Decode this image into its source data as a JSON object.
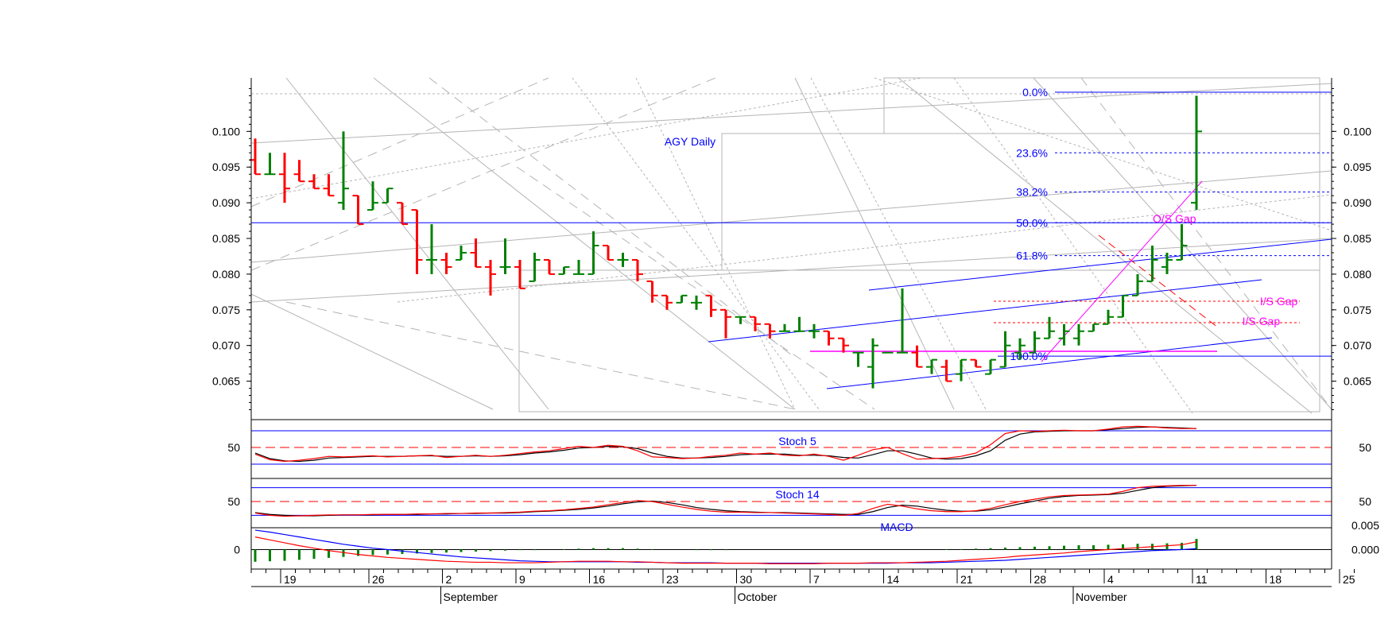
{
  "chart_data": {
    "type": "ohlc",
    "title": "AGY Daily",
    "colors": {
      "up": "#008000",
      "down": "#ff0000",
      "annotation": "#0000ff",
      "gap": "#ff00ff",
      "grid": "#b4b4b4"
    },
    "price_axis": {
      "ylim": [
        0.0605,
        0.1075
      ],
      "ticks": [
        "0.065",
        "0.070",
        "0.075",
        "0.080",
        "0.085",
        "0.090",
        "0.095",
        "0.100"
      ]
    },
    "x_axis": {
      "day_ticks": [
        {
          "day": 9,
          "label": "19"
        },
        {
          "day": 15,
          "label": "26"
        },
        {
          "day": 20,
          "label": "2"
        },
        {
          "day": 25,
          "label": "9"
        },
        {
          "day": 30,
          "label": "16"
        },
        {
          "day": 35,
          "label": "23"
        },
        {
          "day": 40,
          "label": "30"
        },
        {
          "day": 45,
          "label": "7"
        },
        {
          "day": 50,
          "label": "14"
        },
        {
          "day": 55,
          "label": "21"
        },
        {
          "day": 60,
          "label": "28"
        },
        {
          "day": 65,
          "label": "4"
        },
        {
          "day": 71,
          "label": "11"
        },
        {
          "day": 76,
          "label": "18"
        },
        {
          "day": 81,
          "label": "25"
        }
      ],
      "month_labels": [
        {
          "day": 20,
          "label": "September"
        },
        {
          "day": 40,
          "label": "October"
        },
        {
          "day": 63,
          "label": "November"
        }
      ]
    },
    "ohlc": [
      [
        0.096,
        0.099,
        0.094,
        0.094
      ],
      [
        0.094,
        0.097,
        0.094,
        0.094
      ],
      [
        0.094,
        0.097,
        0.09,
        0.092
      ],
      [
        0.094,
        0.096,
        0.093,
        0.093
      ],
      [
        0.093,
        0.094,
        0.092,
        0.092
      ],
      [
        0.092,
        0.094,
        0.091,
        0.091
      ],
      [
        0.09,
        0.1,
        0.089,
        0.092
      ],
      [
        0.091,
        0.091,
        0.087,
        0.087
      ],
      [
        0.089,
        0.093,
        0.089,
        0.09
      ],
      [
        0.09,
        0.092,
        0.09,
        0.092
      ],
      [
        0.09,
        0.09,
        0.087,
        0.087
      ],
      [
        0.089,
        0.089,
        0.08,
        0.082
      ],
      [
        0.082,
        0.087,
        0.08,
        0.082
      ],
      [
        0.082,
        0.083,
        0.08,
        0.081
      ],
      [
        0.082,
        0.084,
        0.082,
        0.083
      ],
      [
        0.083,
        0.085,
        0.081,
        0.081
      ],
      [
        0.081,
        0.082,
        0.077,
        0.08
      ],
      [
        0.081,
        0.085,
        0.08,
        0.081
      ],
      [
        0.081,
        0.082,
        0.078,
        0.078
      ],
      [
        0.079,
        0.083,
        0.079,
        0.082
      ],
      [
        0.082,
        0.082,
        0.08,
        0.08
      ],
      [
        0.08,
        0.081,
        0.08,
        0.081
      ],
      [
        0.08,
        0.082,
        0.08,
        0.08
      ],
      [
        0.08,
        0.086,
        0.08,
        0.084
      ],
      [
        0.084,
        0.084,
        0.082,
        0.082
      ],
      [
        0.082,
        0.083,
        0.081,
        0.082
      ],
      [
        0.082,
        0.082,
        0.079,
        0.08
      ],
      [
        0.079,
        0.079,
        0.076,
        0.077
      ],
      [
        0.077,
        0.077,
        0.075,
        0.076
      ],
      [
        0.076,
        0.077,
        0.076,
        0.077
      ],
      [
        0.076,
        0.077,
        0.075,
        0.076
      ],
      [
        0.077,
        0.077,
        0.074,
        0.075
      ],
      [
        0.075,
        0.075,
        0.071,
        0.074
      ],
      [
        0.074,
        0.074,
        0.073,
        0.074
      ],
      [
        0.074,
        0.074,
        0.072,
        0.073
      ],
      [
        0.073,
        0.073,
        0.071,
        0.072
      ],
      [
        0.072,
        0.073,
        0.072,
        0.072
      ],
      [
        0.072,
        0.074,
        0.072,
        0.072
      ],
      [
        0.072,
        0.073,
        0.071,
        0.072
      ],
      [
        0.072,
        0.072,
        0.07,
        0.071
      ],
      [
        0.071,
        0.071,
        0.069,
        0.07
      ],
      [
        0.069,
        0.069,
        0.067,
        0.069
      ],
      [
        0.067,
        0.071,
        0.064,
        0.07
      ],
      [
        0.069,
        0.069,
        0.069,
        0.069
      ],
      [
        0.069,
        0.078,
        0.069,
        0.069
      ],
      [
        0.069,
        0.07,
        0.067,
        0.067
      ],
      [
        0.067,
        0.068,
        0.066,
        0.068
      ],
      [
        0.067,
        0.068,
        0.065,
        0.065
      ],
      [
        0.066,
        0.068,
        0.065,
        0.068
      ],
      [
        0.068,
        0.068,
        0.067,
        0.067
      ],
      [
        0.066,
        0.068,
        0.066,
        0.068
      ],
      [
        0.067,
        0.072,
        0.067,
        0.07
      ],
      [
        0.069,
        0.071,
        0.068,
        0.07
      ],
      [
        0.069,
        0.072,
        0.069,
        0.071
      ],
      [
        0.071,
        0.074,
        0.071,
        0.072
      ],
      [
        0.071,
        0.073,
        0.07,
        0.072
      ],
      [
        0.071,
        0.073,
        0.07,
        0.072
      ],
      [
        0.072,
        0.073,
        0.072,
        0.073
      ],
      [
        0.073,
        0.075,
        0.073,
        0.074
      ],
      [
        0.074,
        0.077,
        0.074,
        0.077
      ],
      [
        0.077,
        0.08,
        0.077,
        0.079
      ],
      [
        0.079,
        0.084,
        0.079,
        0.082
      ],
      [
        0.081,
        0.083,
        0.08,
        0.082
      ],
      [
        0.082,
        0.087,
        0.082,
        0.084
      ],
      [
        0.09,
        0.105,
        0.089,
        0.1
      ]
    ],
    "ohlc_start_day": 7,
    "fibonacci": [
      {
        "label": "0.0%",
        "price": 0.1055
      },
      {
        "label": "23.6%",
        "price": 0.097
      },
      {
        "label": "38.2%",
        "price": 0.0915
      },
      {
        "label": "50.0%",
        "price": 0.0872
      },
      {
        "label": "61.8%",
        "price": 0.0826
      },
      {
        "label": "100.0%",
        "price": 0.0685
      }
    ],
    "gap_labels": [
      {
        "label": "O/S Gap",
        "price": 0.0878,
        "day": 69.5
      },
      {
        "label": "I/S Gap",
        "price": 0.0762,
        "day": 76.6
      },
      {
        "label": "I/S Gap",
        "price": 0.0734,
        "day": 75.4
      }
    ],
    "gap_lines": [
      0.0762,
      0.0732
    ],
    "support_line": 0.0872,
    "indicators": [
      {
        "name": "Stoch 5",
        "ticks": [
          "50"
        ],
        "levels": [
          20,
          50,
          80
        ],
        "k": [
          38,
          28,
          25,
          27,
          30,
          34,
          33,
          34,
          35,
          33,
          34,
          35,
          36,
          32,
          34,
          36,
          34,
          36,
          39,
          42,
          44,
          48,
          52,
          50,
          54,
          52,
          44,
          33,
          32,
          30,
          31,
          34,
          36,
          40,
          38,
          40,
          36,
          35,
          38,
          34,
          27,
          36,
          46,
          50,
          39,
          29,
          30,
          31,
          34,
          40,
          55,
          75,
          80,
          79,
          80,
          81,
          80,
          80,
          83,
          87,
          88,
          87,
          85,
          84,
          84
        ],
        "d": [
          40,
          30,
          26,
          25,
          27,
          31,
          32,
          33,
          34,
          34,
          34,
          35,
          35,
          34,
          34,
          35,
          34,
          35,
          37,
          40,
          42,
          45,
          49,
          50,
          52,
          51,
          48,
          40,
          34,
          31,
          31,
          32,
          34,
          37,
          38,
          38,
          38,
          36,
          36,
          35,
          32,
          31,
          37,
          44,
          44,
          38,
          31,
          29,
          30,
          35,
          44,
          63,
          74,
          78,
          79,
          80,
          80,
          80,
          82,
          84,
          86,
          87,
          86,
          85,
          84
        ]
      },
      {
        "name": "Stoch 14",
        "ticks": [
          "50"
        ],
        "levels": [
          20,
          50,
          80
        ],
        "k": [
          25,
          20,
          18,
          19,
          20,
          21,
          21,
          21,
          22,
          22,
          22,
          23,
          23,
          24,
          24,
          25,
          25,
          26,
          27,
          29,
          30,
          32,
          35,
          38,
          43,
          48,
          52,
          50,
          44,
          38,
          33,
          29,
          27,
          27,
          26,
          26,
          25,
          24,
          23,
          22,
          20,
          24,
          35,
          44,
          40,
          34,
          30,
          28,
          28,
          30,
          35,
          43,
          50,
          55,
          60,
          63,
          64,
          65,
          66,
          72,
          80,
          83,
          84,
          85,
          85
        ],
        "d": [
          26,
          22,
          20,
          19,
          19,
          20,
          21,
          21,
          21,
          22,
          22,
          22,
          23,
          23,
          24,
          24,
          25,
          25,
          26,
          28,
          29,
          31,
          33,
          36,
          40,
          45,
          49,
          51,
          48,
          43,
          37,
          33,
          30,
          28,
          27,
          26,
          26,
          25,
          24,
          23,
          22,
          22,
          28,
          37,
          42,
          40,
          35,
          31,
          29,
          29,
          32,
          38,
          45,
          51,
          57,
          61,
          63,
          64,
          65,
          68,
          74,
          80,
          83,
          84,
          85
        ]
      },
      {
        "name": "MACD",
        "ticks": [
          "0",
          "0.005",
          "0.000"
        ],
        "ylim": [
          -0.004,
          0.0045
        ],
        "macd": [
          0.0026,
          0.002,
          0.0014,
          0.0008,
          0.0003,
          -0.0002,
          -0.0006,
          -0.001,
          -0.0013,
          -0.0016,
          -0.0018,
          -0.002,
          -0.0022,
          -0.0024,
          -0.0025,
          -0.0026,
          -0.0026,
          -0.0027,
          -0.0027,
          -0.0027,
          -0.0026,
          -0.0025,
          -0.0024,
          -0.0024,
          -0.0024,
          -0.0025,
          -0.0025,
          -0.0026,
          -0.0027,
          -0.0028,
          -0.0028,
          -0.0028,
          -0.0028,
          -0.0028,
          -0.0028,
          -0.0029,
          -0.0029,
          -0.0029,
          -0.0029,
          -0.0028,
          -0.0028,
          -0.0028,
          -0.0027,
          -0.0027,
          -0.0027,
          -0.0026,
          -0.0025,
          -0.0024,
          -0.0022,
          -0.002,
          -0.0018,
          -0.0016,
          -0.0013,
          -0.0011,
          -0.0009,
          -0.0007,
          -0.0004,
          -0.0002,
          0.0,
          0.0002,
          0.0004,
          0.0006,
          0.0008,
          0.001,
          0.0016
        ],
        "signal": [
          0.004,
          0.0036,
          0.0031,
          0.0026,
          0.0021,
          0.0016,
          0.0011,
          0.0007,
          0.0003,
          0.0,
          -0.0003,
          -0.0006,
          -0.0009,
          -0.0012,
          -0.0015,
          -0.0017,
          -0.0019,
          -0.0021,
          -0.0023,
          -0.0024,
          -0.0025,
          -0.0025,
          -0.0025,
          -0.0025,
          -0.0025,
          -0.0025,
          -0.0026,
          -0.0026,
          -0.0027,
          -0.0027,
          -0.0027,
          -0.0027,
          -0.0028,
          -0.0028,
          -0.0028,
          -0.0028,
          -0.0028,
          -0.0028,
          -0.0028,
          -0.0028,
          -0.0028,
          -0.0028,
          -0.0028,
          -0.0028,
          -0.0027,
          -0.0027,
          -0.0027,
          -0.0026,
          -0.0025,
          -0.0024,
          -0.0023,
          -0.0022,
          -0.002,
          -0.0018,
          -0.0016,
          -0.0014,
          -0.0012,
          -0.001,
          -0.0008,
          -0.0006,
          -0.0004,
          -0.0002,
          -0.0001,
          0.0,
          0.0002
        ],
        "hist": [
          -0.0025,
          -0.0024,
          -0.0023,
          -0.0021,
          -0.0019,
          -0.0017,
          -0.0015,
          -0.0013,
          -0.0011,
          -0.001,
          -0.0009,
          -0.0008,
          -0.0007,
          -0.0006,
          -0.0005,
          -0.0004,
          -0.0003,
          -0.0002,
          -0.0001,
          -0.0001,
          0.0,
          0.0001,
          0.0002,
          0.0003,
          0.0003,
          0.0003,
          0.0002,
          0.0001,
          0.0,
          0.0,
          -0.0001,
          -0.0001,
          -0.0001,
          0.0,
          0.0,
          0.0,
          0.0,
          0.0,
          0.0,
          0.0,
          0.0,
          0.0,
          0.0,
          0.0,
          0.0,
          0.0,
          0.0,
          0.0001,
          0.0001,
          0.0002,
          0.0003,
          0.0004,
          0.0005,
          0.0006,
          0.0007,
          0.0008,
          0.0009,
          0.0009,
          0.001,
          0.0011,
          0.0012,
          0.0012,
          0.0013,
          0.0014,
          0.0022
        ]
      }
    ]
  }
}
